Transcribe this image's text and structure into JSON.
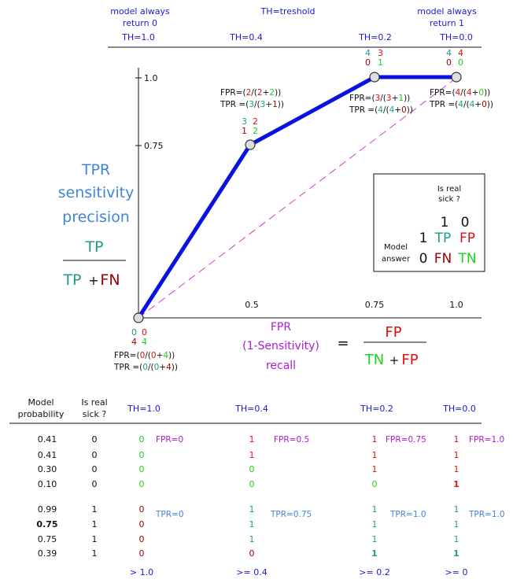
{
  "colors": {
    "blue": "#1a1adb",
    "curve": "#0a12e0",
    "red": "#e01010",
    "dark_red": "#9b0000",
    "green": "#1ecf1e",
    "teal": "#1f9a8a",
    "purple": "#b01ad8",
    "light_blue": "#3f86d8",
    "magenta": "#d040c8",
    "black": "#111111"
  },
  "top": {
    "left_label": [
      "model always",
      "return 0"
    ],
    "center_label": "TH=treshold",
    "right_label": [
      "model always",
      "return 1"
    ],
    "th_labels": [
      "TH=1.0",
      "TH=0.4",
      "TH=0.2",
      "TH=0.0"
    ]
  },
  "axes": {
    "y_ticks": [
      "1.0",
      "0.75"
    ],
    "x_ticks": [
      "0.5",
      "0.75",
      "1.0"
    ]
  },
  "tpr_formula": {
    "lines": [
      "TPR",
      "sensitivity",
      "precision"
    ],
    "numerator": "TP",
    "den_a": "TP",
    "den_plus": "+",
    "den_b": "FN"
  },
  "fpr_formula": {
    "lines": [
      "FPR",
      "(1-Sensitivity)",
      "recall"
    ],
    "equals": "=",
    "numerator": "FP",
    "den_a": "TN",
    "den_plus": "+",
    "den_b": "FP"
  },
  "matrix": {
    "col_header": [
      "Is real",
      "sick ?"
    ],
    "col_values": [
      "1",
      "0"
    ],
    "row_header": [
      "Model",
      "answer"
    ],
    "row_values": [
      "1",
      "0"
    ],
    "cells": [
      "TP",
      "FP",
      "FN",
      "TN"
    ]
  },
  "roc_points": {
    "p1": {
      "counts": [
        "0",
        "0",
        "4",
        "4"
      ],
      "fpr": [
        "FPR=(",
        "0",
        "/(",
        "0",
        "+",
        "4",
        "))"
      ],
      "tpr": [
        "TPR =(",
        "0",
        "/(",
        "0",
        "+",
        "4",
        "))"
      ]
    },
    "p2": {
      "counts": [
        "3",
        "2",
        "1",
        "2"
      ],
      "fpr": [
        "FPR=(",
        "2",
        "/(",
        "2",
        "+",
        "2",
        "))"
      ],
      "tpr": [
        "TPR =(",
        "3",
        "/(",
        "3",
        "+",
        "1",
        "))"
      ]
    },
    "p3": {
      "counts": [
        "4",
        "3",
        "0",
        "1"
      ],
      "fpr": [
        "FPR=(",
        "3",
        "/(",
        "3",
        "+",
        "1",
        "))"
      ],
      "tpr": [
        "TPR =(",
        "4",
        "/(",
        "4",
        "+",
        "0",
        "))"
      ]
    },
    "p4": {
      "counts": [
        "4",
        "4",
        "0",
        "0"
      ],
      "fpr": [
        "FPR=(",
        "4",
        "/(",
        "4",
        "+",
        "0",
        "))"
      ],
      "tpr": [
        "TPR =(",
        "4",
        "/(",
        "4",
        "+",
        "0",
        "))"
      ]
    }
  },
  "table": {
    "headers": {
      "prob": [
        "Model",
        "probability"
      ],
      "sick": [
        "Is real",
        "sick ?"
      ],
      "th": [
        "TH=1.0",
        "TH=0.4",
        "TH=0.2",
        "TH=0.0"
      ]
    },
    "probs": [
      "0.41",
      "0.41",
      "0.30",
      "0.10",
      "0.99",
      "0.75",
      "0.75",
      "0.39"
    ],
    "sick": [
      "0",
      "0",
      "0",
      "0",
      "1",
      "1",
      "1",
      "1"
    ],
    "th1": [
      "0",
      "0",
      "0",
      "0",
      "0",
      "0",
      "0",
      "0"
    ],
    "th2": [
      "1",
      "1",
      "0",
      "0",
      "1",
      "1",
      "1",
      "0"
    ],
    "th3": [
      "1",
      "1",
      "1",
      "0",
      "1",
      "1",
      "1",
      "1"
    ],
    "th4": [
      "1",
      "1",
      "1",
      "1",
      "1",
      "1",
      "1",
      "1"
    ],
    "fpr": [
      "FPR=0",
      "FPR=0.5",
      "FPR=0.75",
      "FPR=1.0"
    ],
    "tpr": [
      "TPR=0",
      "TPR=0.75",
      "TPR=1.0",
      "TPR=1.0"
    ],
    "footer": [
      "> 1.0",
      ">= 0.4",
      ">= 0.2",
      ">= 0"
    ]
  }
}
